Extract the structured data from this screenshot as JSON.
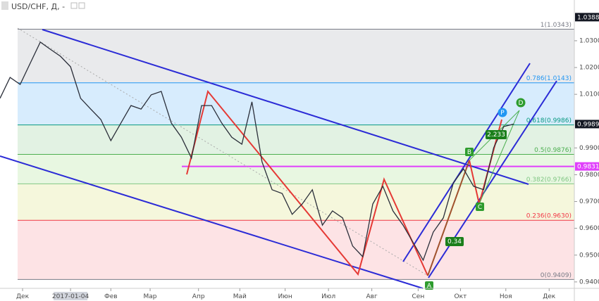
{
  "chart_data": {
    "type": "line",
    "title": "USD/CHF, Д, -",
    "x": [
      0,
      1,
      2,
      3,
      4,
      5,
      6,
      7,
      8,
      9,
      10,
      11,
      12,
      13,
      14,
      15,
      16,
      17,
      18,
      19,
      20,
      21,
      22,
      23,
      24,
      25,
      26,
      27,
      28,
      29,
      30,
      31,
      32,
      33,
      34,
      35,
      36,
      37,
      38,
      39,
      40,
      41,
      42,
      43,
      44,
      45,
      46,
      47,
      48,
      49,
      50,
      51
    ],
    "series": [
      {
        "name": "USD/CHF",
        "color": "#2a2e39",
        "values": [
          1.0085,
          1.0163,
          1.0137,
          1.0216,
          1.0295,
          1.0268,
          1.0242,
          1.0203,
          1.0085,
          1.0045,
          1.0006,
          0.9927,
          0.9993,
          1.0058,
          1.0045,
          1.0098,
          1.0111,
          0.9993,
          0.994,
          0.9862,
          1.0058,
          1.0058,
          0.9993,
          0.994,
          0.9914,
          1.0072,
          0.9848,
          0.9744,
          0.973,
          0.9652,
          0.9691,
          0.9744,
          0.9612,
          0.9665,
          0.9639,
          0.9534,
          0.9494,
          0.9691,
          0.9757,
          0.9665,
          0.9612,
          0.9547,
          0.9481,
          0.9586,
          0.9639,
          0.977,
          0.9822,
          0.9757,
          0.9744,
          0.9901,
          0.998,
          0.9989
        ]
      }
    ],
    "xlim": [
      0,
      57
    ],
    "xticks": [
      {
        "value": 2.24,
        "label": "Дек"
      },
      {
        "value": 7.0,
        "label": "2017-01-04"
      },
      {
        "value": 11.0,
        "label": "Фев"
      },
      {
        "value": 14.9,
        "label": "Мар"
      },
      {
        "value": 19.7,
        "label": "Апр"
      },
      {
        "value": 23.8,
        "label": "Май"
      },
      {
        "value": 28.3,
        "label": "Июн"
      },
      {
        "value": 32.6,
        "label": "Июл"
      },
      {
        "value": 36.9,
        "label": "Авг"
      },
      {
        "value": 41.5,
        "label": "Сен"
      },
      {
        "value": 45.7,
        "label": "Окт"
      },
      {
        "value": 50.2,
        "label": "Ноя"
      },
      {
        "value": 54.5,
        "label": "Дек"
      }
    ],
    "ylim": [
      0.9376,
      1.0452
    ],
    "yticks": [
      {
        "value": 0.94,
        "label": "0.9400"
      },
      {
        "value": 0.95,
        "label": "0.9500"
      },
      {
        "value": 0.96,
        "label": "0.9600"
      },
      {
        "value": 0.97,
        "label": "0.9700"
      },
      {
        "value": 0.98,
        "label": "0.9800"
      },
      {
        "value": 0.99,
        "label": "0.9900"
      },
      {
        "value": 1.01,
        "label": "1.0100"
      },
      {
        "value": 1.02,
        "label": "1.0200"
      },
      {
        "value": 1.03,
        "label": "1.0300"
      }
    ],
    "fib_levels": [
      {
        "value": 0.9409,
        "label": "0(0.9409)",
        "color": "#787b86",
        "zone_color": "rgba(242,54,69,0.14)"
      },
      {
        "value": 0.963,
        "label": "0.236(0.9630)",
        "color": "#f23645",
        "zone_color": "rgba(200,210,60,0.18)"
      },
      {
        "value": 0.9766,
        "label": "0.382(0.9766)",
        "color": "#81c784",
        "zone_color": "rgba(130,210,90,0.18)"
      },
      {
        "value": 0.9876,
        "label": "0.5(0.9876)",
        "color": "#4caf50",
        "zone_color": "rgba(76,175,80,0.16)"
      },
      {
        "value": 0.9986,
        "label": "0.618(0.9986)",
        "color": "#089981",
        "zone_color": "rgba(33,150,243,0.18)"
      },
      {
        "value": 1.0143,
        "label": "0.786(1.0143)",
        "color": "#2196f3",
        "zone_color": "rgba(120,123,134,0.16)"
      },
      {
        "value": 1.0343,
        "label": "1(1.0343)",
        "color": "#787b86"
      }
    ],
    "horizontal_line": {
      "value": 0.9831,
      "label": "0.9831",
      "color": "#e040fb"
    },
    "last_price": {
      "value": 0.9989,
      "label": "0.9989"
    },
    "high_label": {
      "value": 1.0388,
      "label": "1.0388"
    },
    "pattern_labels": [
      "A",
      "B",
      "C",
      "D",
      "P",
      "2.233",
      "0.34"
    ]
  }
}
